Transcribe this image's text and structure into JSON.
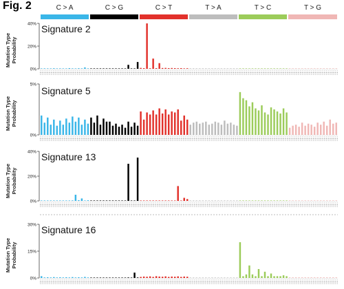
{
  "figure_label": "Fig. 2",
  "mutation_types": [
    {
      "label": "C > A",
      "color": "#3ab6e8"
    },
    {
      "label": "C > G",
      "color": "#000000"
    },
    {
      "label": "C > T",
      "color": "#e2312b"
    },
    {
      "label": "T > A",
      "color": "#bdbdbd"
    },
    {
      "label": "T > C",
      "color": "#9ccc5a"
    },
    {
      "label": "T > G",
      "color": "#f0b7b5"
    }
  ],
  "y_axis_label": "Mutation Type Probability",
  "chart_data": [
    {
      "type": "bar",
      "title": "Signature 2",
      "ylim": [
        0,
        40
      ],
      "yticks": [
        "0%",
        "20%",
        "40%"
      ],
      "ytick_values": [
        0,
        20,
        40
      ],
      "values": [
        0.3,
        0.4,
        0.3,
        0.3,
        0.5,
        0.3,
        0.4,
        0.3,
        0.3,
        0.6,
        0.4,
        0.3,
        0.5,
        0.4,
        1.2,
        0.4,
        0.2,
        0.3,
        0.2,
        0.2,
        0.3,
        0.2,
        0.2,
        0.3,
        0.3,
        0.2,
        0.2,
        0.3,
        3.5,
        0.3,
        0.2,
        6.0,
        0.8,
        0.6,
        0.7,
        0.5,
        1.2,
        0.6,
        0.8,
        0.7,
        0.8,
        0.6,
        0.7,
        0.6,
        0.5,
        0.6,
        0.4,
        0.5,
        0.3,
        0.3,
        0.3,
        0.3,
        0.3,
        0.3,
        0.3,
        0.3,
        0.3,
        0.3,
        0.3,
        0.3,
        0.3,
        0.3,
        0.3,
        0.3,
        0.2,
        0.2,
        0.2,
        0.2,
        0.2,
        0.2,
        0.2,
        0.2,
        0.2,
        0.2,
        0.2,
        0.2,
        0.2,
        0.2,
        0.2,
        0.2,
        0.2,
        0.2,
        0.2,
        0.2,
        0.2,
        0.2,
        0.2,
        0.2,
        0.2,
        0.2,
        0.2,
        0.2,
        0.2,
        0.2,
        0.2,
        0.2
      ],
      "peaks": {
        "34": 40.0,
        "36": 9.0,
        "38": 5.0
      }
    },
    {
      "type": "bar",
      "title": "Signature 5",
      "ylim": [
        0,
        5
      ],
      "yticks": [
        "0%",
        "5%"
      ],
      "ytick_values": [
        0,
        5
      ],
      "values": [
        1.9,
        1.2,
        1.7,
        1.0,
        1.5,
        0.9,
        1.4,
        1.0,
        1.6,
        1.2,
        1.8,
        1.3,
        1.7,
        1.0,
        1.5,
        1.1,
        1.7,
        1.2,
        1.9,
        1.0,
        1.6,
        1.3,
        1.3,
        0.9,
        1.1,
        0.8,
        1.0,
        0.7,
        1.3,
        0.8,
        1.2,
        0.9,
        2.3,
        1.5,
        2.2,
        2.0,
        2.4,
        2.0,
        2.6,
        2.1,
        2.5,
        2.0,
        2.3,
        2.2,
        2.5,
        1.4,
        1.9,
        1.5,
        1.0,
        1.2,
        1.3,
        1.1,
        1.2,
        1.3,
        1.0,
        1.1,
        1.3,
        1.2,
        1.0,
        1.4,
        1.1,
        1.2,
        1.0,
        0.9,
        4.2,
        3.6,
        3.4,
        2.8,
        3.2,
        2.6,
        2.4,
        2.9,
        2.2,
        2.0,
        2.7,
        2.5,
        2.3,
        2.1,
        2.6,
        2.2,
        0.7,
        0.9,
        1.0,
        0.8,
        1.2,
        0.9,
        1.1,
        1.0,
        0.8,
        1.2,
        1.0,
        1.3,
        0.9,
        1.5,
        1.1,
        1.2
      ]
    },
    {
      "type": "bar",
      "title": "Signature 13",
      "ylim": [
        0,
        40
      ],
      "yticks": [
        "0%",
        "20%",
        "40%"
      ],
      "ytick_values": [
        0,
        20,
        40
      ],
      "values": [
        0.3,
        0.3,
        0.3,
        0.3,
        0.3,
        0.3,
        0.3,
        0.3,
        0.3,
        0.3,
        0.4,
        5.0,
        0.6,
        2.0,
        0.3,
        0.5,
        0.3,
        0.3,
        0.3,
        0.3,
        0.3,
        0.3,
        0.3,
        0.3,
        0.3,
        0.3,
        0.3,
        0.3,
        0.3,
        0.3,
        0.3,
        0.3,
        0.3,
        0.3,
        0.3,
        0.3,
        0.3,
        0.3,
        0.3,
        0.3,
        0.3,
        0.3,
        0.3,
        0.3,
        0.3,
        0.3,
        0.3,
        0.3,
        0.1,
        0.1,
        0.1,
        0.1,
        0.1,
        0.1,
        0.1,
        0.1,
        0.1,
        0.1,
        0.1,
        0.1,
        0.1,
        0.1,
        0.1,
        0.1,
        0.1,
        0.1,
        0.1,
        0.1,
        0.1,
        0.1,
        0.1,
        0.1,
        0.1,
        0.1,
        0.1,
        0.1,
        0.1,
        0.1,
        0.1,
        0.1,
        0.2,
        0.1,
        0.2,
        0.1,
        0.2,
        0.1,
        0.2,
        0.1,
        0.2,
        0.1,
        0.2,
        0.1,
        0.2,
        0.1,
        0.2,
        0.1
      ],
      "peaks": {
        "28": 30.0,
        "31": 35.0,
        "44": 12.0,
        "46": 2.5,
        "47": 1.5
      }
    },
    {
      "type": "bar",
      "title": "Signature 16",
      "ylim": [
        0,
        30
      ],
      "yticks": [
        "0%",
        "15%",
        "30%"
      ],
      "ytick_values": [
        0,
        15,
        30
      ],
      "values": [
        1.0,
        0.3,
        0.4,
        0.3,
        0.5,
        0.3,
        0.4,
        0.3,
        0.4,
        0.3,
        0.5,
        0.3,
        0.4,
        0.3,
        0.6,
        0.3,
        0.2,
        0.2,
        0.2,
        0.2,
        0.2,
        0.2,
        0.2,
        0.2,
        0.2,
        0.2,
        0.2,
        0.2,
        0.3,
        0.2,
        3.0,
        0.3,
        0.6,
        0.8,
        0.7,
        0.9,
        0.6,
        1.0,
        0.8,
        0.7,
        0.9,
        0.6,
        0.8,
        0.7,
        0.9,
        0.6,
        0.8,
        0.7,
        0.2,
        0.2,
        0.2,
        0.2,
        0.2,
        0.2,
        0.2,
        0.2,
        0.2,
        0.2,
        0.2,
        0.2,
        0.2,
        0.2,
        0.2,
        0.2,
        1.0,
        1.0,
        2.0,
        1.0,
        2.0,
        1.0,
        1.0,
        1.0,
        1.5,
        1.0,
        2.5,
        1.0,
        1.0,
        1.0,
        1.5,
        1.0,
        0.3,
        0.3,
        0.3,
        0.3,
        0.3,
        0.3,
        0.3,
        0.3,
        0.3,
        0.3,
        0.3,
        0.3,
        0.3,
        0.3,
        0.3,
        0.3
      ],
      "peaks": {
        "64": 20.0,
        "67": 7.0,
        "70": 5.0,
        "72": 3.5
      }
    }
  ]
}
